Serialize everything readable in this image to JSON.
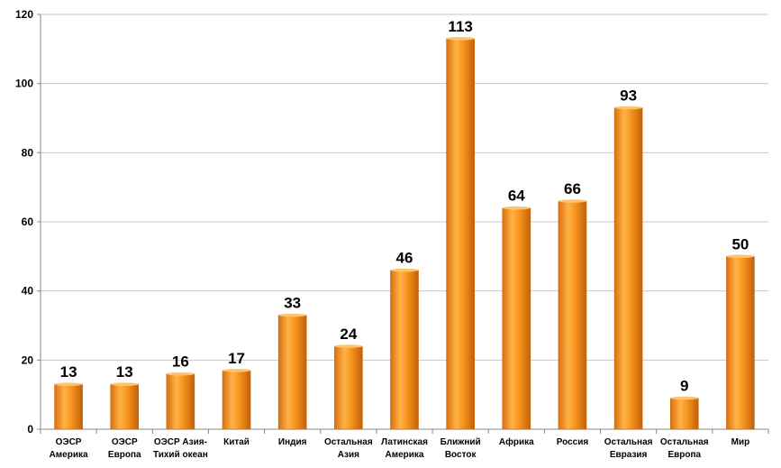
{
  "chart_data": {
    "type": "bar",
    "categories": [
      [
        "ОЭСР",
        "Америка"
      ],
      [
        "ОЭСР",
        "Европа"
      ],
      [
        "ОЭСР Азия-",
        "Тихий океан"
      ],
      [
        "Китай"
      ],
      [
        "Индия"
      ],
      [
        "Остальная",
        "Азия"
      ],
      [
        "Латинская",
        "Америка"
      ],
      [
        "Ближний",
        "Восток"
      ],
      [
        "Африка"
      ],
      [
        "Россия"
      ],
      [
        "Остальная",
        "Евразия"
      ],
      [
        "Остальная",
        "Европа"
      ],
      [
        "Мир"
      ]
    ],
    "values": [
      13,
      13,
      16,
      17,
      33,
      24,
      46,
      113,
      64,
      66,
      93,
      9,
      50
    ],
    "ylim": [
      0,
      120
    ],
    "yticks": [
      0,
      20,
      40,
      60,
      80,
      100,
      120
    ],
    "grid": true,
    "bar_color": "#F7941D",
    "title": "",
    "xlabel": "",
    "ylabel": ""
  }
}
